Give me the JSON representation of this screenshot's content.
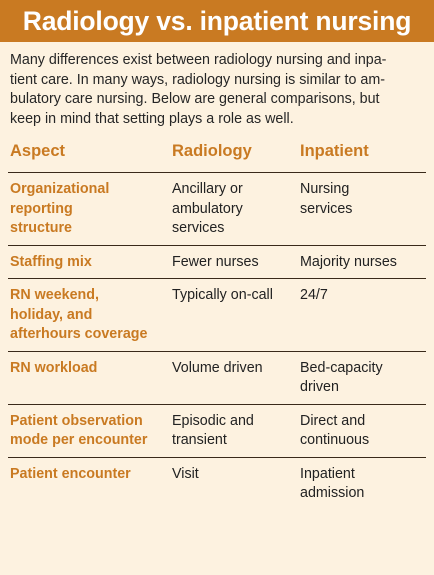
{
  "title": "Radiology vs. inpatient nursing",
  "intro_lines": [
    "Many differences exist between radiology nursing and inpa-",
    "tient care. In many ways, radiology nursing is similar to am-",
    "bulatory care nursing. Below are general comparisons, but",
    "keep in mind that setting plays a role as well."
  ],
  "table": {
    "headers": [
      "Aspect",
      "Radiology",
      "Inpatient"
    ],
    "rows": [
      {
        "aspect": [
          "Organizational",
          "reporting",
          "structure"
        ],
        "radiology": [
          "Ancillary or",
          "ambulatory",
          "services"
        ],
        "inpatient": [
          "Nursing",
          "services"
        ]
      },
      {
        "aspect": [
          "Staffing mix"
        ],
        "radiology": [
          "Fewer nurses"
        ],
        "inpatient": [
          "Majority nurses"
        ]
      },
      {
        "aspect": [
          "RN weekend,",
          "holiday, and",
          "afterhours coverage"
        ],
        "radiology": [
          "Typically on-call"
        ],
        "inpatient": [
          "24/7"
        ]
      },
      {
        "aspect": [
          "RN workload"
        ],
        "radiology": [
          "Volume driven"
        ],
        "inpatient": [
          "Bed-capacity",
          "driven"
        ]
      },
      {
        "aspect": [
          "Patient observation",
          "mode per encounter"
        ],
        "radiology": [
          "Episodic and",
          "transient"
        ],
        "inpatient": [
          "Direct and",
          "continuous"
        ]
      },
      {
        "aspect": [
          "Patient encounter"
        ],
        "radiology": [
          "Visit"
        ],
        "inpatient": [
          "Inpatient",
          "admission"
        ]
      }
    ]
  }
}
